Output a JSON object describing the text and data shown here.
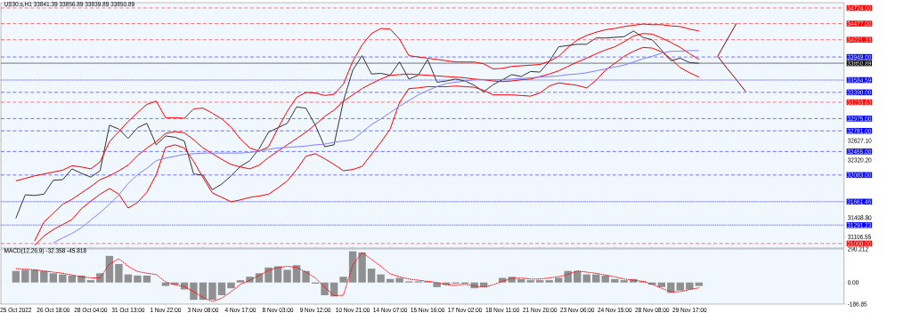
{
  "chart_data": [
    {
      "type": "line",
      "title": "US30.s,H1 33841.39 33856.89 33839.89 33850.89",
      "categories": [
        null,
        null,
        null,
        null,
        null,
        null,
        null,
        null,
        null,
        null,
        null,
        null,
        null,
        null,
        null,
        null,
        null,
        null,
        null,
        null,
        null,
        null,
        null,
        null,
        null,
        null,
        null,
        null,
        null,
        null,
        null,
        null,
        null,
        null,
        null,
        null,
        null,
        null,
        null,
        null,
        null,
        null,
        null,
        null,
        null,
        null,
        null,
        null,
        null,
        null,
        null,
        null,
        null,
        null,
        null,
        null,
        null,
        null,
        null,
        null,
        null,
        null,
        null,
        null,
        null,
        null,
        null,
        null,
        null,
        null,
        null,
        null,
        null,
        null,
        null,
        null,
        null,
        null,
        null,
        null,
        null,
        null,
        null,
        null,
        null,
        null,
        null,
        null,
        null
      ],
      "ylim": [
        30928,
        34808
      ],
      "tick_labels": "y",
      "yticks": [
        {
          "value": 31106.55,
          "label": "31106.55"
        },
        {
          "value": 31408.8,
          "label": "31408.80"
        },
        {
          "value": 32320.2,
          "label": "32320.20"
        },
        {
          "value": 32627.1,
          "label": "32627.10"
        }
      ],
      "series": [
        {
          "color": "#333333",
          "values": [
            31400,
            31770,
            31760,
            31780,
            32000,
            32010,
            32180,
            32110,
            32050,
            32150,
            32870,
            32810,
            32660,
            32830,
            32900,
            32560,
            32700,
            32680,
            32620,
            32100,
            32080,
            31850,
            31940,
            32070,
            32220,
            32310,
            32500,
            32760,
            32830,
            32900,
            33160,
            33140,
            32870,
            32530,
            32560,
            33250,
            33740,
            33970,
            33680,
            33690,
            33660,
            33870,
            33600,
            33660,
            33910,
            33550,
            33570,
            33600,
            33570,
            33500,
            33400,
            33510,
            33590,
            33670,
            33640,
            33720,
            33710,
            33880,
            34110,
            34130,
            34150,
            34150,
            34250,
            34250,
            34260,
            34270,
            34360,
            34260,
            34220,
            34060,
            33890,
            33930,
            33860,
            33850,
            null,
            null,
            null,
            null,
            null,
            null,
            null,
            null,
            null,
            null,
            null,
            null,
            null,
            null,
            null
          ]
        },
        {
          "color": "#ff0000",
          "values": [
            31990,
            32030,
            32070,
            32100,
            32130,
            32160,
            32230,
            32210,
            32180,
            32290,
            32610,
            32770,
            32930,
            33070,
            33200,
            33250,
            32990,
            32990,
            32980,
            33130,
            33140,
            33060,
            32970,
            32840,
            32650,
            32510,
            32460,
            32530,
            32820,
            33090,
            33310,
            33390,
            33380,
            33340,
            33360,
            33520,
            33880,
            34140,
            34320,
            34400,
            34390,
            34230,
            33970,
            33950,
            33930,
            33910,
            33890,
            33870,
            33870,
            33870,
            33840,
            33760,
            33770,
            33800,
            33810,
            33820,
            33830,
            33880,
            33960,
            34100,
            34220,
            34290,
            34340,
            34380,
            34400,
            34430,
            34450,
            34470,
            34460,
            34460,
            34440,
            34430,
            34390,
            34360,
            null,
            null,
            null,
            null,
            null,
            null,
            null,
            null,
            null,
            null,
            null,
            null,
            null,
            null,
            null
          ]
        },
        {
          "color": "#ff0000",
          "values": [
            null,
            null,
            31040,
            31340,
            31480,
            31620,
            31700,
            31800,
            31900,
            32010,
            32070,
            32150,
            32240,
            32390,
            32510,
            32610,
            32740,
            32770,
            32750,
            32640,
            32510,
            32420,
            32330,
            32250,
            32210,
            32180,
            32240,
            32360,
            32460,
            32560,
            32660,
            32760,
            32880,
            33010,
            33110,
            33250,
            33350,
            33450,
            33530,
            33600,
            33660,
            33670,
            33680,
            33670,
            33660,
            33650,
            33640,
            33630,
            33620,
            33600,
            33590,
            33570,
            33560,
            33570,
            33590,
            33600,
            33640,
            33680,
            33730,
            33800,
            33870,
            33930,
            34000,
            34060,
            34110,
            34190,
            34280,
            34320,
            34310,
            34250,
            34180,
            34100,
            34000,
            33910,
            null,
            null,
            null,
            null,
            null,
            null,
            null,
            null,
            null,
            null,
            null,
            null,
            null,
            null,
            null
          ]
        },
        {
          "color": "#ff0000",
          "values": [
            null,
            null,
            30970,
            31120,
            31220,
            31300,
            31380,
            31550,
            31670,
            31780,
            31870,
            31780,
            31560,
            31650,
            31810,
            32090,
            32520,
            32560,
            32510,
            32300,
            32040,
            31800,
            31730,
            31660,
            31690,
            31730,
            31750,
            31780,
            31880,
            31990,
            32170,
            32380,
            32420,
            32340,
            32250,
            32150,
            32170,
            32220,
            32410,
            32600,
            32810,
            33230,
            33450,
            33460,
            33480,
            33480,
            33480,
            33490,
            33480,
            33470,
            33420,
            33350,
            33350,
            33350,
            33340,
            33330,
            33380,
            33490,
            33540,
            33520,
            33500,
            33460,
            33580,
            33740,
            33850,
            33960,
            34040,
            34100,
            34090,
            34030,
            33920,
            33780,
            33700,
            33630,
            null,
            null,
            null,
            null,
            null,
            null,
            null,
            null,
            null,
            null,
            null,
            null,
            null,
            null,
            null
          ]
        },
        {
          "color": "#8080ff",
          "values": [
            null,
            null,
            null,
            null,
            31010,
            31090,
            31160,
            31250,
            31370,
            31490,
            31620,
            31770,
            31950,
            32090,
            32190,
            32310,
            32350,
            32380,
            32410,
            32420,
            32430,
            32430,
            32430,
            32430,
            32430,
            32440,
            32460,
            32490,
            32510,
            32520,
            32530,
            32540,
            32560,
            32570,
            32600,
            32620,
            32640,
            32760,
            32880,
            32970,
            33070,
            33170,
            33260,
            33350,
            33420,
            33480,
            33530,
            33550,
            33570,
            33590,
            33590,
            33590,
            33590,
            33600,
            33610,
            33620,
            33630,
            33640,
            33650,
            33670,
            33680,
            33700,
            33730,
            33760,
            33790,
            33820,
            33870,
            33920,
            33960,
            34010,
            34040,
            34040,
            34050,
            34050,
            null,
            null,
            null,
            null,
            null,
            null,
            null,
            null,
            null,
            null,
            null,
            null,
            null,
            null,
            null
          ]
        },
        {
          "color": "#8b0000",
          "values": [
            null,
            null,
            null,
            null,
            null,
            null,
            null,
            null,
            null,
            null,
            null,
            null,
            null,
            null,
            null,
            null,
            null,
            null,
            null,
            null,
            null,
            null,
            null,
            null,
            null,
            null,
            null,
            null,
            null,
            null,
            null,
            null,
            null,
            null,
            null,
            null,
            null,
            null,
            null,
            null,
            null,
            null,
            null,
            null,
            null,
            null,
            null,
            null,
            null,
            null,
            null,
            null,
            null,
            null,
            null,
            null,
            null,
            null,
            null,
            null,
            null,
            null,
            null,
            null,
            null,
            null,
            null,
            null,
            null,
            null,
            null,
            null,
            null,
            null,
            null,
            33960,
            34220,
            34480,
            null,
            null,
            null,
            null,
            null,
            null,
            null,
            null,
            null,
            null,
            null
          ]
        },
        {
          "color": "#8b0000",
          "values": [
            null,
            null,
            null,
            null,
            null,
            null,
            null,
            null,
            null,
            null,
            null,
            null,
            null,
            null,
            null,
            null,
            null,
            null,
            null,
            null,
            null,
            null,
            null,
            null,
            null,
            null,
            null,
            null,
            null,
            null,
            null,
            null,
            null,
            null,
            null,
            null,
            null,
            null,
            null,
            null,
            null,
            null,
            null,
            null,
            null,
            null,
            null,
            null,
            null,
            null,
            null,
            null,
            null,
            null,
            null,
            null,
            null,
            null,
            null,
            null,
            null,
            null,
            null,
            null,
            null,
            null,
            null,
            null,
            null,
            null,
            null,
            null,
            null,
            null,
            null,
            33960,
            33770,
            33590,
            33400,
            null,
            null,
            null,
            null,
            null,
            null,
            null,
            null,
            null,
            null
          ]
        }
      ],
      "ref_lines": [
        {
          "axis": "y",
          "value": 34724.0,
          "label": "34724.00",
          "color": "#ff0000",
          "line_style": "dashed"
        },
        {
          "axis": "y",
          "value": 34477.0,
          "label": "34477.00",
          "color": "#ff0000",
          "line_style": "dashed"
        },
        {
          "axis": "y",
          "value": 34221.33,
          "label": "34221.33",
          "color": "#ff0000",
          "line_style": "dashed"
        },
        {
          "axis": "y",
          "value": 33949.0,
          "label": "33949.00",
          "color": "#0000ff",
          "line_style": "dashed"
        },
        {
          "axis": "y",
          "value": 33850.89,
          "label": "33850.89",
          "color": "#000000",
          "line_style": "solid"
        },
        {
          "axis": "y",
          "value": 33584.59,
          "label": "33584.59",
          "color": "#0000ff",
          "line_style": "dotted"
        },
        {
          "axis": "y",
          "value": 33390.0,
          "label": "33390.00",
          "color": "#0000ff",
          "line_style": "dashed"
        },
        {
          "axis": "y",
          "value": 33233.63,
          "label": "33233.63",
          "color": "#ff0000",
          "line_style": "dashed"
        },
        {
          "axis": "y",
          "value": 32975.0,
          "label": "32975.00",
          "color": "#0000ff",
          "line_style": "dashed"
        },
        {
          "axis": "y",
          "value": 32781.0,
          "label": "32781.00",
          "color": "#0000ff",
          "line_style": "dashed"
        },
        {
          "axis": "y",
          "value": 32455.0,
          "label": "32455.00",
          "color": "#0000ff",
          "line_style": "dashed"
        },
        {
          "axis": "y",
          "value": 32083.0,
          "label": "32083.00",
          "color": "#0000ff",
          "line_style": "dashed"
        },
        {
          "axis": "y",
          "value": 31661.46,
          "label": "31661.46",
          "color": "#0000ff",
          "line_style": "dotted"
        },
        {
          "axis": "y",
          "value": 31291.23,
          "label": "31291.23",
          "color": "#0000ff",
          "line_style": "dotted"
        },
        {
          "axis": "y",
          "value": 31000.0,
          "label": "31000.00",
          "color": "#ff0000",
          "line_style": "dashed"
        }
      ]
    },
    {
      "type": "bar",
      "title": "MACD(12,26,9) -32.358 -45.818",
      "categories": [
        "25 Oct 2022",
        null,
        null,
        null,
        "26 Oct 18:00",
        null,
        null,
        null,
        "28 Oct 04:00",
        null,
        null,
        null,
        "31 Oct 13:00",
        null,
        null,
        null,
        "1 Nov 22:00",
        null,
        null,
        null,
        "3 Nov 08:00",
        null,
        null,
        null,
        "4 Nov 17:00",
        null,
        null,
        null,
        "8 Nov 03:00",
        null,
        null,
        null,
        "9 Nov 12:00",
        null,
        null,
        null,
        "10 Nov 21:00",
        null,
        null,
        null,
        "14 Nov 07:00",
        null,
        null,
        null,
        "15 Nov 16:00",
        null,
        null,
        null,
        "17 Nov 02:00",
        null,
        null,
        null,
        "18 Nov 11:00",
        null,
        null,
        null,
        "21 Nov 20:00",
        null,
        null,
        null,
        "23 Nov 06:00",
        null,
        null,
        null,
        "24 Nov 15:00",
        null,
        null,
        null,
        "28 Nov 08:00",
        null,
        null,
        null,
        "29 Nov 17:00",
        null,
        null,
        null,
        null,
        null,
        null,
        null,
        null,
        null,
        null,
        null,
        null,
        null,
        null,
        null,
        null
      ],
      "ylim": [
        -186.85,
        290.212
      ],
      "yticks": [
        {
          "value": 290.212,
          "label": "290.212"
        },
        {
          "value": 0,
          "label": "0.00"
        },
        {
          "value": -186.85,
          "label": "-186.85"
        }
      ],
      "series": [
        {
          "color": "#909090",
          "values": [
            100,
            110,
            110,
            100,
            80,
            70,
            60,
            60,
            20,
            80,
            230,
            160,
            70,
            60,
            60,
            0,
            -30,
            -20,
            -60,
            -150,
            -150,
            -150,
            -110,
            -50,
            20,
            50,
            80,
            130,
            140,
            110,
            150,
            100,
            -10,
            -110,
            -120,
            50,
            270,
            260,
            120,
            70,
            30,
            40,
            10,
            10,
            10,
            -40,
            -20,
            -10,
            -10,
            -50,
            -40,
            0,
            40,
            50,
            30,
            20,
            20,
            20,
            40,
            100,
            100,
            70,
            70,
            60,
            30,
            20,
            30,
            10,
            -20,
            -40,
            -90,
            -70,
            -60,
            -30,
            null,
            null,
            null,
            null,
            null,
            null,
            null,
            null,
            null,
            null,
            null,
            null,
            null,
            null,
            null
          ]
        },
        {
          "type": "line",
          "color": "#ff0000",
          "line_style": "dotted",
          "values": [
            120,
            115,
            110,
            100,
            90,
            80,
            65,
            50,
            40,
            40,
            160,
            205,
            140,
            95,
            80,
            70,
            5,
            -20,
            -35,
            -80,
            -130,
            -165,
            -135,
            -80,
            -15,
            20,
            60,
            105,
            130,
            140,
            130,
            90,
            40,
            -40,
            -115,
            -110,
            150,
            260,
            200,
            140,
            75,
            50,
            30,
            20,
            10,
            0,
            -20,
            -25,
            -15,
            -30,
            -40,
            -20,
            10,
            35,
            40,
            30,
            30,
            40,
            50,
            70,
            100,
            90,
            80,
            65,
            50,
            30,
            20,
            10,
            -15,
            -50,
            -80,
            -80,
            -60,
            -46,
            null,
            null,
            null,
            null,
            null,
            null,
            null,
            null,
            null,
            null,
            null,
            null,
            null,
            null,
            null
          ]
        }
      ]
    }
  ]
}
